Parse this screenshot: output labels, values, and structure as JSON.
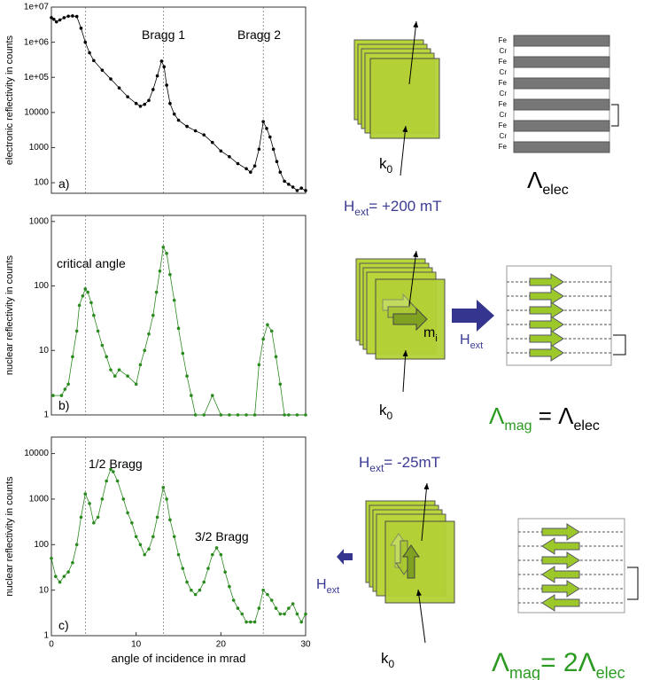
{
  "chart_data": [
    {
      "type": "line",
      "ylabel": "electronic reflectivity in counts",
      "color": "#000000",
      "log_y": true,
      "xlim": [
        0,
        30
      ],
      "ylim": [
        50,
        10000000
      ],
      "yticks": [
        {
          "value": 10000000,
          "label": "1e+07"
        },
        {
          "value": 1000000,
          "label": "1e+06"
        },
        {
          "value": 100000,
          "label": "1e+05"
        },
        10000,
        1000,
        100
      ],
      "reference_lines": [
        4,
        13.2,
        25
      ],
      "annotations": [
        "Bragg 1",
        "Bragg 2",
        "a)"
      ],
      "x": [
        0,
        0.3,
        0.6,
        1,
        1.5,
        2,
        2.5,
        3,
        3.5,
        4,
        4.5,
        5,
        6,
        7,
        8,
        9,
        10,
        10.5,
        11,
        11.5,
        12,
        12.5,
        13,
        13.3,
        13.6,
        14,
        14.5,
        15,
        16,
        17,
        18,
        19,
        20,
        21,
        22,
        23,
        23.5,
        24,
        24.5,
        25,
        25.4,
        25.8,
        26.2,
        26.6,
        27,
        27.5,
        28,
        28.5,
        29,
        29.5,
        30
      ],
      "series": [
        {
          "color": "#000000",
          "values": [
            5000000,
            4500000,
            3800000,
            4300000,
            5000000,
            5500000,
            5600000,
            5400000,
            2500000,
            1000000,
            500000,
            300000,
            160000,
            90000,
            50000,
            28000,
            18000,
            15000,
            17000,
            22000,
            45000,
            110000,
            290000,
            200000,
            60000,
            18000,
            9000,
            6000,
            4000,
            3000,
            2300,
            1400,
            800,
            550,
            350,
            250,
            200,
            300,
            900,
            5500,
            3500,
            2000,
            900,
            400,
            200,
            110,
            90,
            75,
            60,
            70,
            60
          ]
        }
      ]
    },
    {
      "type": "line",
      "ylabel": "nuclear reflectivity in counts",
      "color": "#2a8a1e",
      "log_y": true,
      "xlim": [
        0,
        30
      ],
      "ylim": [
        1,
        1240
      ],
      "yticks": [
        1,
        10,
        100,
        1000
      ],
      "reference_lines": [
        4,
        13.2,
        25
      ],
      "annotations": [
        "critical angle",
        "b)"
      ],
      "x": [
        0.2,
        1.2,
        1.6,
        2,
        2.5,
        3,
        3.3,
        3.7,
        4,
        4.3,
        4.7,
        5,
        5.5,
        6,
        6.5,
        7,
        7.5,
        8,
        9,
        10,
        10.5,
        11,
        11.5,
        12,
        12.4,
        12.8,
        13.2,
        13.6,
        14,
        14.5,
        15,
        15.5,
        16,
        16.5,
        17,
        18,
        19,
        20,
        21,
        22,
        23,
        24,
        24.5,
        25,
        25.5,
        26,
        26.5,
        27,
        27.5,
        28,
        29,
        30
      ],
      "series": [
        {
          "color": "#2a8a1e",
          "values": [
            2,
            2,
            2.5,
            3,
            8,
            20,
            50,
            70,
            90,
            80,
            55,
            35,
            20,
            12,
            8,
            5,
            4,
            5,
            4,
            3,
            6,
            10,
            18,
            35,
            80,
            170,
            400,
            320,
            150,
            60,
            22,
            9,
            4,
            2,
            1,
            1,
            2,
            1,
            1,
            1,
            1,
            1,
            6,
            15,
            25,
            20,
            8,
            3,
            1,
            1,
            1,
            1
          ]
        }
      ]
    },
    {
      "type": "line",
      "ylabel": "nuclear reflectivity in counts",
      "xlabel": "angle of incidence in mrad",
      "color": "#2a8a1e",
      "log_y": true,
      "xlim": [
        0,
        30
      ],
      "ylim": [
        1,
        23000
      ],
      "xticks": [
        0,
        10,
        20,
        30
      ],
      "yticks": [
        1,
        10,
        100,
        1000,
        10000
      ],
      "reference_lines": [
        4,
        13.2,
        25
      ],
      "annotations": [
        "1/2 Bragg",
        "3/2 Bragg",
        "c)"
      ],
      "x": [
        0,
        0.5,
        1,
        1.5,
        2,
        2.5,
        3,
        3.5,
        4,
        4.5,
        5,
        5.5,
        6,
        6.5,
        7,
        7.3,
        7.8,
        8.5,
        9,
        9.5,
        10,
        10.5,
        11,
        11.5,
        12,
        12.5,
        13.2,
        13.6,
        14,
        14.5,
        15,
        15.5,
        16,
        16.5,
        17,
        17.5,
        18,
        18.5,
        19,
        19.5,
        20,
        20.5,
        21,
        21.5,
        22,
        22.5,
        23,
        23.5,
        24,
        24.5,
        25,
        25.5,
        26,
        26.5,
        27,
        27.5,
        28,
        28.5,
        29,
        29.5,
        30
      ],
      "series": [
        {
          "color": "#2a8a1e",
          "values": [
            50,
            20,
            15,
            20,
            25,
            40,
            100,
            400,
            1300,
            800,
            300,
            400,
            1000,
            2500,
            4500,
            4000,
            2500,
            1000,
            500,
            300,
            150,
            100,
            60,
            80,
            150,
            400,
            1800,
            1000,
            350,
            150,
            60,
            30,
            15,
            10,
            8,
            10,
            15,
            30,
            60,
            85,
            60,
            25,
            12,
            6,
            4,
            3,
            2,
            2,
            2,
            4,
            10,
            8,
            6,
            4,
            3,
            3,
            4,
            5,
            3,
            2,
            3
          ]
        }
      ]
    }
  ],
  "diagrams": {
    "layers": [
      "Fe",
      "Cr",
      "Fe",
      "Cr",
      "Fe",
      "Cr",
      "Fe",
      "Cr",
      "Fe",
      "Cr",
      "Fe"
    ],
    "k0": {
      "base": "k",
      "sub": "0"
    },
    "mi": {
      "base": "m",
      "sub": "i"
    },
    "hext": {
      "base": "H",
      "sub": "ext"
    },
    "field1": {
      "base": "H",
      "sub": "ext",
      "rest": "= +200 mT"
    },
    "field2": {
      "base": "H",
      "sub": "ext",
      "rest": "= -25mT"
    },
    "lambda_elec": {
      "base": "Λ",
      "sub": "elec"
    },
    "eq1": {
      "lhs": "Λ",
      "lhs_sub": "mag",
      "eq": " = ",
      "rhs": "Λ",
      "rhs_sub": "elec"
    },
    "eq2": {
      "lhs": "Λ",
      "lhs_sub": "mag",
      "eq": "= 2",
      "rhs": "Λ",
      "rhs_sub": "elec"
    }
  }
}
